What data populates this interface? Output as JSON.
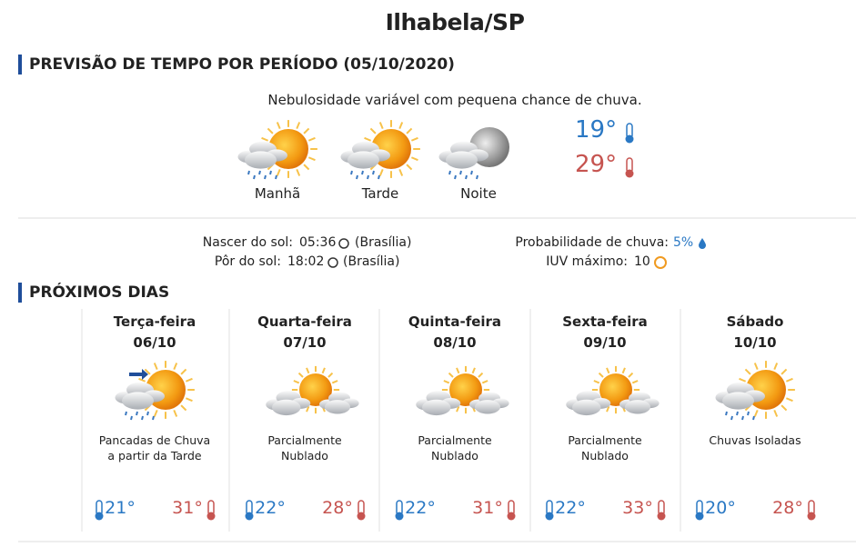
{
  "header": {
    "title": "Ilhabela/SP"
  },
  "period": {
    "title": "PREVISÃO DE TEMPO POR PERÍODO (05/10/2020)",
    "description": "Nebulosidade variável com pequena chance de chuva.",
    "periods": [
      "Manhã",
      "Tarde",
      "Noite"
    ],
    "min": "19°",
    "max": "29°"
  },
  "sun": {
    "sunrise_label": "Nascer do sol:",
    "sunrise": "05:36",
    "sunrise_zone": "(Brasília)",
    "sunset_label": "Pôr do sol:",
    "sunset": "18:02",
    "sunset_zone": "(Brasília)",
    "rain_label": "Probabilidade de chuva:",
    "rain": "5%",
    "uv_label": "IUV máximo:",
    "uv": "10"
  },
  "next": {
    "title": "PRÓXIMOS DIAS",
    "days": [
      {
        "name": "Terça-feira",
        "date": "06/10",
        "desc": [
          "Pancadas de Chuva",
          "a partir da Tarde"
        ],
        "min": "21°",
        "max": "31°"
      },
      {
        "name": "Quarta-feira",
        "date": "07/10",
        "desc": [
          "Parcialmente",
          "Nublado"
        ],
        "min": "22°",
        "max": "28°"
      },
      {
        "name": "Quinta-feira",
        "date": "08/10",
        "desc": [
          "Parcialmente",
          "Nublado"
        ],
        "min": "22°",
        "max": "31°"
      },
      {
        "name": "Sexta-feira",
        "date": "09/10",
        "desc": [
          "Parcialmente",
          "Nublado"
        ],
        "min": "22°",
        "max": "33°"
      },
      {
        "name": "Sábado",
        "date": "10/10",
        "desc": [
          "Chuvas Isoladas"
        ],
        "min": "20°",
        "max": "28°"
      }
    ]
  }
}
